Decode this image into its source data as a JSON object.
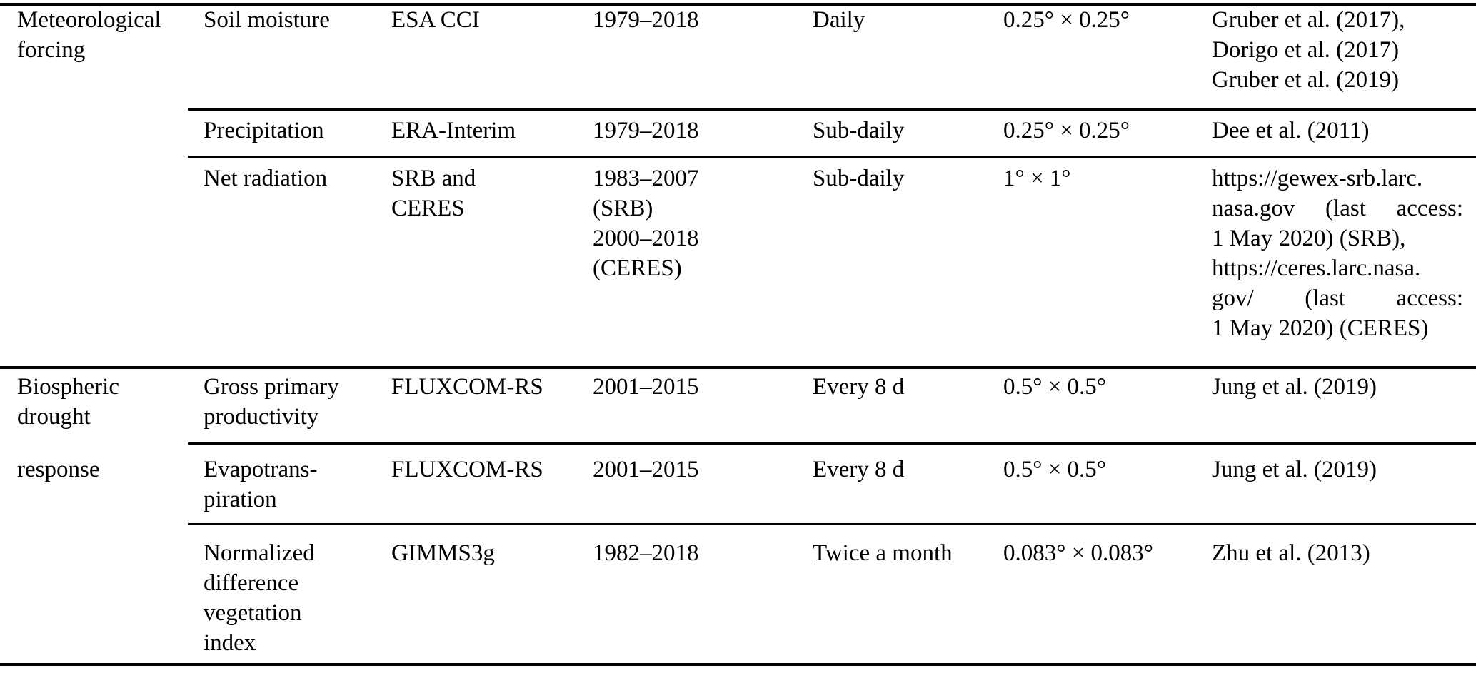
{
  "document": {
    "kind": "journal-paper-data-table",
    "colors": {
      "text": "#000000",
      "rules": "#000000",
      "background": "#ffffff"
    }
  },
  "table": {
    "rows": [
      {
        "category_lines": [
          "Meteorological",
          "forcing"
        ],
        "variable_lines": [
          "Soil moisture"
        ],
        "dataset_lines": [
          "ESA CCI"
        ],
        "period_lines": [
          "1979–2018"
        ],
        "temporal_lines": [
          "Daily"
        ],
        "spatial_lines": [
          "0.25° × 0.25°"
        ],
        "reference_lines": [
          "Gruber et al. (2017),",
          "Dorigo et al. (2017)",
          "Gruber et al. (2019)"
        ]
      },
      {
        "variable_lines": [
          "Precipitation"
        ],
        "dataset_lines": [
          "ERA-Interim"
        ],
        "period_lines": [
          "1979–2018"
        ],
        "temporal_lines": [
          "Sub-daily"
        ],
        "spatial_lines": [
          "0.25° × 0.25°"
        ],
        "reference_lines": [
          "Dee et al. (2011)"
        ]
      },
      {
        "variable_lines": [
          "Net radiation"
        ],
        "dataset_lines": [
          "SRB and",
          "CERES"
        ],
        "period_lines": [
          "1983–2007",
          "(SRB)",
          "2000–2018",
          "(CERES)"
        ],
        "temporal_lines": [
          "Sub-daily"
        ],
        "spatial_lines": [
          "1° × 1°"
        ],
        "reference_lines": [
          "https://gewex-srb.larc.",
          "nasa.gov (last access:",
          "1 May 2020) (SRB),",
          "https://ceres.larc.nasa.",
          "gov/ (last access:",
          "1 May 2020) (CERES)"
        ]
      },
      {
        "category_lines": [
          "Biospheric",
          "drought"
        ],
        "variable_lines": [
          "Gross primary",
          "productivity"
        ],
        "dataset_lines": [
          "FLUXCOM-RS"
        ],
        "period_lines": [
          "2001–2015"
        ],
        "temporal_lines": [
          "Every 8 d"
        ],
        "spatial_lines": [
          "0.5° × 0.5°"
        ],
        "reference_lines": [
          "Jung et al. (2019)"
        ]
      },
      {
        "category_lines": [
          "response"
        ],
        "variable_lines": [
          "Evapotrans-",
          "piration"
        ],
        "dataset_lines": [
          "FLUXCOM-RS"
        ],
        "period_lines": [
          "2001–2015"
        ],
        "temporal_lines": [
          "Every 8 d"
        ],
        "spatial_lines": [
          "0.5° × 0.5°"
        ],
        "reference_lines": [
          "Jung et al. (2019)"
        ]
      },
      {
        "variable_lines": [
          "Normalized",
          "difference",
          "vegetation",
          "index"
        ],
        "dataset_lines": [
          "GIMMS3g"
        ],
        "period_lines": [
          "1982–2018"
        ],
        "temporal_lines": [
          "Twice a month"
        ],
        "spatial_lines": [
          "0.083° × 0.083°"
        ],
        "reference_lines": [
          "Zhu et al. (2013)"
        ]
      }
    ]
  }
}
